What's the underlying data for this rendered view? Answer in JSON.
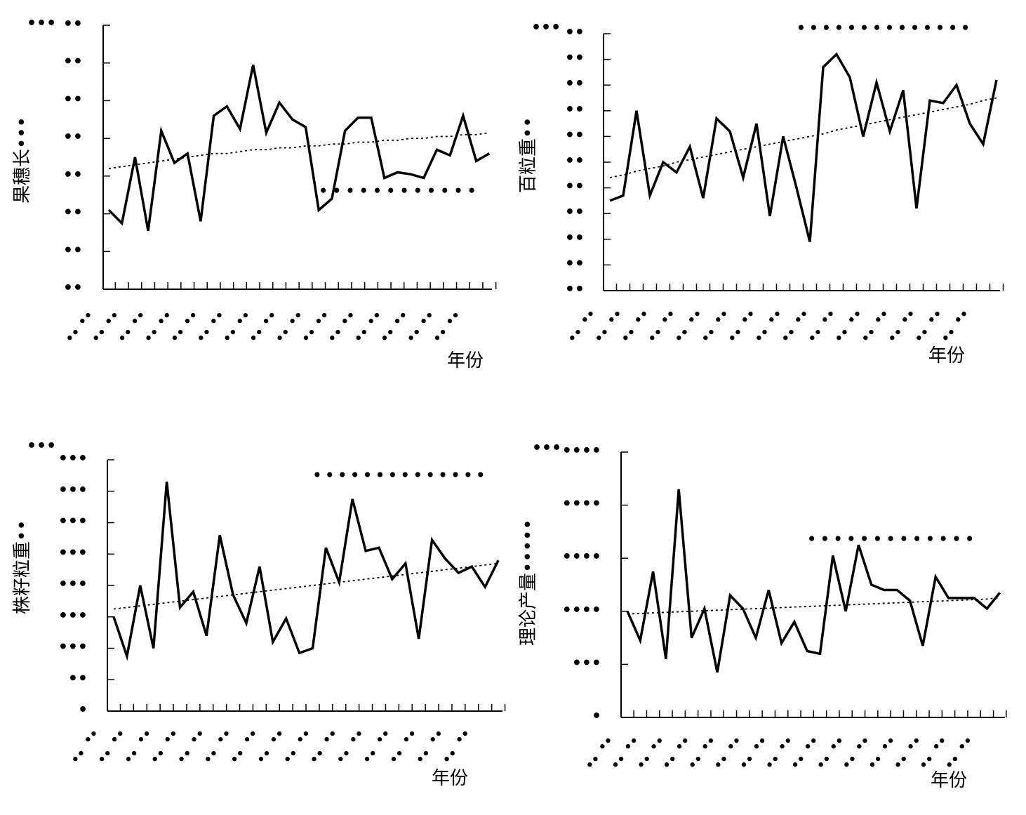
{
  "charts": [
    {
      "ylabel": "果穗长•••",
      "xlabel": "年份",
      "corner_unit": "•••",
      "bracket_label": "••••••••••••",
      "y_tick_labels": [
        "••",
        "••",
        "••",
        "••",
        "••",
        "••",
        "••",
        "••"
      ],
      "n_year_ticks": 30
    },
    {
      "ylabel": "百粒重••",
      "xlabel": "年份",
      "corner_unit": "•••",
      "bracket_label": "••••••••••••••",
      "y_tick_labels": [
        "••",
        "••",
        "••",
        "••",
        "••",
        "••",
        "••",
        "••",
        "••",
        "••",
        "••"
      ],
      "n_year_ticks": 30
    },
    {
      "ylabel": "株籽粒重••",
      "xlabel": "年份",
      "corner_unit": "•••",
      "bracket_label": "••••••••••••••",
      "y_tick_labels": [
        "•",
        "••",
        "•••",
        "•••",
        "•••",
        "•••",
        "•••",
        "•••",
        "•••"
      ],
      "n_year_ticks": 30
    },
    {
      "ylabel": "理论产量•••••",
      "xlabel": "年份",
      "corner_unit": "•••",
      "bracket_label": "•••••••••••••",
      "y_tick_labels": [
        "•",
        "•••",
        "••••",
        "••••",
        "••••",
        "••••"
      ],
      "n_year_ticks": 30
    }
  ],
  "chart_data": [
    {
      "type": "line",
      "title": "",
      "xlabel": "年份",
      "ylabel": "果穗长•••",
      "ylim": [
        0,
        7
      ],
      "x": [
        1,
        2,
        3,
        4,
        5,
        6,
        7,
        8,
        9,
        10,
        11,
        12,
        13,
        14,
        15,
        16,
        17,
        18,
        19,
        20,
        21,
        22,
        23,
        24,
        25,
        26,
        27,
        28,
        29,
        30
      ],
      "series": [
        {
          "style": "solid",
          "values": [
            2.1,
            1.75,
            3.5,
            1.55,
            4.2,
            3.35,
            3.6,
            1.8,
            4.6,
            4.85,
            4.25,
            5.95,
            4.15,
            4.95,
            4.5,
            4.3,
            2.1,
            2.4,
            4.2,
            4.55,
            4.55,
            2.95,
            3.1,
            3.05,
            2.95,
            3.7,
            3.55,
            4.6,
            3.4,
            3.6
          ]
        },
        {
          "style": "dotted",
          "values": [
            3.2,
            3.25,
            3.3,
            3.35,
            3.4,
            3.45,
            3.5,
            3.55,
            3.6,
            3.6,
            3.65,
            3.7,
            3.7,
            3.75,
            3.75,
            3.8,
            3.8,
            3.85,
            3.85,
            3.9,
            3.9,
            3.95,
            3.95,
            4.0,
            4.0,
            4.05,
            4.05,
            4.1,
            4.1,
            4.15
          ]
        }
      ],
      "bracket": {
        "x_range": [
          17,
          29
        ],
        "y": 2.6
      }
    },
    {
      "type": "line",
      "title": "",
      "xlabel": "年份",
      "ylabel": "百粒重••",
      "ylim": [
        0,
        10
      ],
      "x": [
        1,
        2,
        3,
        4,
        5,
        6,
        7,
        8,
        9,
        10,
        11,
        12,
        13,
        14,
        15,
        16,
        17,
        18,
        19,
        20,
        21,
        22,
        23,
        24,
        25,
        26,
        27,
        28,
        29,
        30
      ],
      "series": [
        {
          "style": "solid",
          "values": [
            3.5,
            3.7,
            7.0,
            3.7,
            5.0,
            4.6,
            5.6,
            3.6,
            6.7,
            6.2,
            4.4,
            6.5,
            2.9,
            6.0,
            4.0,
            1.9,
            8.7,
            9.2,
            8.3,
            6.0,
            8.1,
            6.2,
            7.8,
            3.2,
            7.4,
            7.3,
            8.0,
            6.5,
            5.7,
            8.2
          ]
        },
        {
          "style": "dotted",
          "values": [
            4.4,
            4.5,
            4.65,
            4.75,
            4.85,
            5.0,
            5.1,
            5.2,
            5.3,
            5.4,
            5.5,
            5.6,
            5.7,
            5.8,
            5.9,
            6.0,
            6.1,
            6.25,
            6.35,
            6.45,
            6.55,
            6.65,
            6.75,
            6.85,
            6.95,
            7.05,
            7.15,
            7.25,
            7.4,
            7.5
          ]
        }
      ],
      "bracket": {
        "x_range": [
          15,
          28
        ],
        "y": 10.2
      }
    },
    {
      "type": "line",
      "title": "",
      "xlabel": "年份",
      "ylabel": "株籽粒重••",
      "ylim": [
        0,
        8
      ],
      "x": [
        1,
        2,
        3,
        4,
        5,
        6,
        7,
        8,
        9,
        10,
        11,
        12,
        13,
        14,
        15,
        16,
        17,
        18,
        19,
        20,
        21,
        22,
        23,
        24,
        25,
        26,
        27,
        28,
        29,
        30
      ],
      "series": [
        {
          "style": "solid",
          "values": [
            3.0,
            1.75,
            4.0,
            2.0,
            7.3,
            3.3,
            3.8,
            2.4,
            5.6,
            3.7,
            2.8,
            4.6,
            2.2,
            2.95,
            1.85,
            2.0,
            5.2,
            4.1,
            6.75,
            5.1,
            5.2,
            4.2,
            4.7,
            2.3,
            5.45,
            4.85,
            4.4,
            4.6,
            3.95,
            4.8
          ]
        },
        {
          "style": "dotted",
          "values": [
            3.25,
            3.3,
            3.35,
            3.4,
            3.45,
            3.5,
            3.55,
            3.6,
            3.65,
            3.7,
            3.75,
            3.8,
            3.85,
            3.9,
            3.95,
            4.0,
            4.05,
            4.1,
            4.15,
            4.2,
            4.25,
            4.3,
            4.35,
            4.4,
            4.45,
            4.5,
            4.55,
            4.6,
            4.65,
            4.7
          ]
        }
      ],
      "bracket": {
        "x_range": [
          16,
          29
        ],
        "y": 7.5
      }
    },
    {
      "type": "line",
      "title": "",
      "xlabel": "年份",
      "ylabel": "理论产量•••••",
      "ylim": [
        0,
        5
      ],
      "x": [
        1,
        2,
        3,
        4,
        5,
        6,
        7,
        8,
        9,
        10,
        11,
        12,
        13,
        14,
        15,
        16,
        17,
        18,
        19,
        20,
        21,
        22,
        23,
        24,
        25,
        26,
        27,
        28,
        29,
        30
      ],
      "series": [
        {
          "style": "solid",
          "values": [
            2.0,
            1.45,
            2.75,
            1.1,
            4.3,
            1.5,
            2.05,
            0.85,
            2.3,
            2.05,
            1.5,
            2.4,
            1.4,
            1.8,
            1.25,
            1.2,
            3.05,
            2.0,
            3.25,
            2.5,
            2.4,
            2.4,
            2.2,
            1.35,
            2.65,
            2.25,
            2.25,
            2.25,
            2.05,
            2.35
          ]
        },
        {
          "style": "dotted",
          "values": [
            1.95,
            1.96,
            1.97,
            1.98,
            1.99,
            2.0,
            2.01,
            2.02,
            2.03,
            2.04,
            2.05,
            2.06,
            2.07,
            2.08,
            2.09,
            2.1,
            2.11,
            2.12,
            2.13,
            2.14,
            2.15,
            2.16,
            2.17,
            2.18,
            2.19,
            2.2,
            2.21,
            2.22,
            2.23,
            2.26
          ]
        }
      ],
      "bracket": {
        "x_range": [
          15,
          28
        ],
        "y": 3.35
      }
    }
  ]
}
